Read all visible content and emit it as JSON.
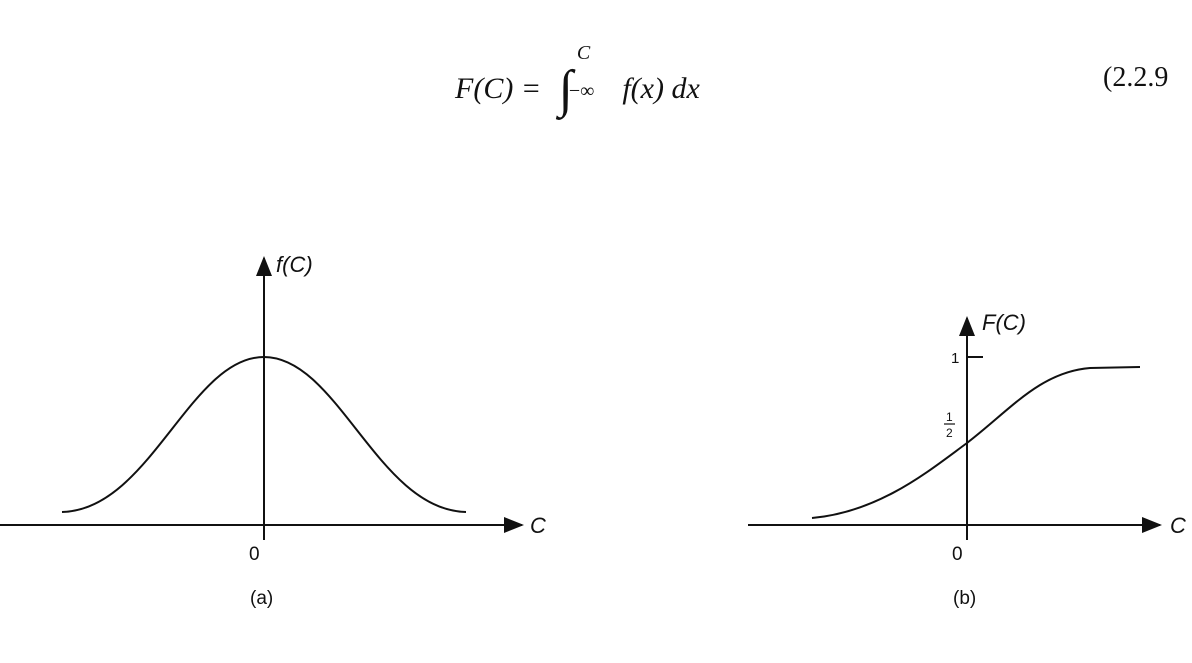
{
  "equation": {
    "lhs": "F(C) =",
    "integral_upper": "C",
    "integral_lower": "−∞",
    "integrand": "f(x) dx",
    "number": "(2.2.9"
  },
  "figures": [
    {
      "y_label": "f(C)",
      "x_label": "C",
      "origin_label": "0",
      "caption": "(a)",
      "curve": "bell-shaped density"
    },
    {
      "y_label": "F(C)",
      "x_label": "C",
      "origin_label": "0",
      "caption": "(b)",
      "curve": "sigmoid cumulative distribution",
      "y_ticks": {
        "one": "1",
        "half_num": "1",
        "half_den": "2"
      }
    }
  ]
}
